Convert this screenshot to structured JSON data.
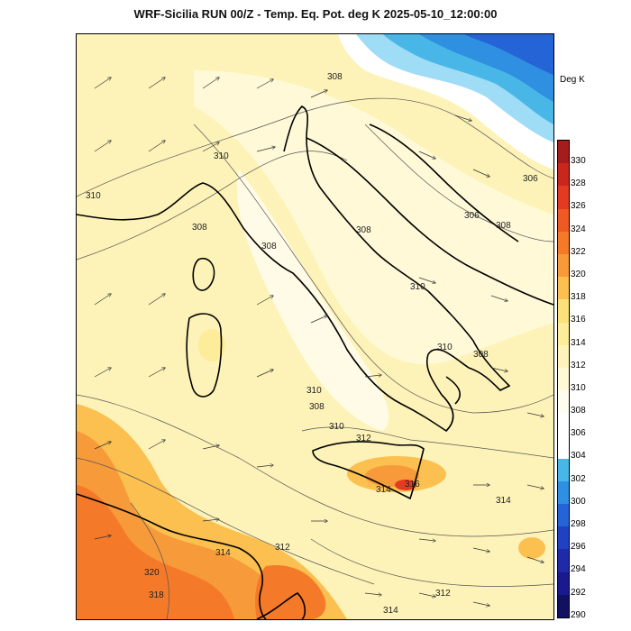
{
  "title": "WRF-Sicilia RUN 00/Z - Temp. Eq. Pot. deg K 2025-05-10_12:00:00",
  "colorbar": {
    "unit": "Deg K",
    "ticks": [
      "330",
      "328",
      "326",
      "324",
      "322",
      "320",
      "318",
      "316",
      "314",
      "312",
      "310",
      "308",
      "306",
      "304",
      "302",
      "300",
      "298",
      "296",
      "294",
      "292",
      "290"
    ],
    "colors": [
      "#a51c1c",
      "#c9261e",
      "#e23b22",
      "#ef5a24",
      "#f47a2a",
      "#f79a3a",
      "#fbc050",
      "#fce07a",
      "#fdec9a",
      "#fef4bb",
      "#fff9d8",
      "#fffdf0",
      "#ffffff",
      "#ffffff",
      "#48b7e8",
      "#2f8fe0",
      "#2464d6",
      "#2041c4",
      "#1e2aa8",
      "#1b1a8c",
      "#121060"
    ]
  },
  "contour_labels": [
    "308",
    "310",
    "310",
    "308",
    "308",
    "306",
    "308",
    "306",
    "308",
    "310",
    "310",
    "308",
    "310",
    "308",
    "310",
    "312",
    "316",
    "314",
    "314",
    "314",
    "312",
    "320",
    "318",
    "312",
    "314"
  ]
}
